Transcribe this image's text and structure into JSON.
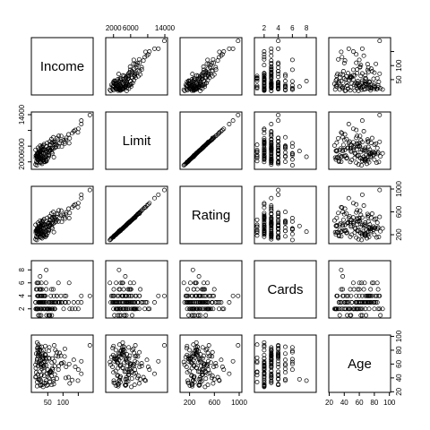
{
  "chart_data": {
    "type": "scatter",
    "kind": "scatterplot-matrix",
    "title": "",
    "variables": [
      {
        "name": "Income",
        "range": [
          5,
          190
        ],
        "ticks": [
          50,
          100,
          150
        ]
      },
      {
        "name": "Limit",
        "range": [
          800,
          14000
        ],
        "ticks": [
          2000,
          6000,
          10000,
          14000
        ]
      },
      {
        "name": "Rating",
        "range": [
          90,
          1000
        ],
        "ticks": [
          200,
          600,
          1000
        ]
      },
      {
        "name": "Cards",
        "range": [
          1,
          9
        ],
        "ticks": [
          2,
          4,
          6,
          8
        ]
      },
      {
        "name": "Age",
        "range": [
          23,
          98
        ],
        "ticks": [
          20,
          40,
          60,
          80,
          100
        ]
      }
    ],
    "tick_label_text": {
      "top": [
        [
          "2000",
          "6000",
          "14000"
        ],
        [
          "2",
          "4",
          "6",
          "8"
        ]
      ],
      "right": [
        [
          "50",
          "100"
        ],
        [
          "200",
          "600",
          "1000"
        ],
        [
          "20",
          "40",
          "60",
          "80",
          "100"
        ]
      ],
      "left": [
        [
          "2000",
          "6000",
          "14000"
        ],
        [
          "2",
          "4",
          "6",
          "8"
        ]
      ],
      "bottom": [
        [
          "50",
          "100"
        ],
        [
          "200",
          "600",
          "1000"
        ],
        [
          "20",
          "40",
          "60",
          "80",
          "100"
        ]
      ]
    },
    "records": [
      [
        15,
        3610,
        280,
        2,
        34
      ],
      [
        106,
        6650,
        480,
        3,
        82
      ],
      [
        105,
        7080,
        510,
        4,
        71
      ],
      [
        149,
        9500,
        681,
        3,
        36
      ],
      [
        55,
        4890,
        357,
        2,
        68
      ],
      [
        80,
        8050,
        569,
        4,
        77
      ],
      [
        21,
        3390,
        259,
        2,
        37
      ],
      [
        71,
        7110,
        512,
        2,
        87
      ],
      [
        15,
        3300,
        266,
        5,
        66
      ],
      [
        10,
        5060,
        372,
        3,
        41
      ],
      [
        63,
        6910,
        494,
        2,
        30
      ],
      [
        72,
        7030,
        500,
        3,
        64
      ],
      [
        18,
        3580,
        270,
        2,
        57
      ],
      [
        23,
        4590,
        340,
        1,
        49
      ],
      [
        49,
        3580,
        276,
        2,
        42
      ],
      [
        36,
        4300,
        320,
        3,
        80
      ],
      [
        32,
        4950,
        365,
        4,
        30
      ],
      [
        55,
        5530,
        410,
        3,
        84
      ],
      [
        94,
        8580,
        622,
        3,
        61
      ],
      [
        26,
        3640,
        270,
        2,
        59
      ],
      [
        18,
        4200,
        313,
        4,
        73
      ],
      [
        140,
        10100,
        730,
        2,
        56
      ],
      [
        36,
        2120,
        180,
        4,
        68
      ],
      [
        73,
        5570,
        415,
        2,
        45
      ],
      [
        22,
        2790,
        220,
        3,
        64
      ],
      [
        120,
        6740,
        490,
        6,
        60
      ],
      [
        34,
        3400,
        260,
        3,
        72
      ],
      [
        27,
        2050,
        171,
        5,
        36
      ],
      [
        29,
        3700,
        287,
        6,
        79
      ],
      [
        68,
        8260,
        598,
        5,
        38
      ],
      [
        42,
        1990,
        160,
        4,
        86
      ],
      [
        57,
        7170,
        523,
        2,
        47
      ],
      [
        37,
        4100,
        310,
        3,
        55
      ],
      [
        29,
        5500,
        400,
        3,
        44
      ],
      [
        15,
        4160,
        310,
        2,
        91
      ],
      [
        63,
        4500,
        338,
        1,
        62
      ],
      [
        24,
        4150,
        311,
        4,
        81
      ],
      [
        10,
        1350,
        120,
        3,
        59
      ],
      [
        89,
        6820,
        496,
        3,
        76
      ],
      [
        38,
        2050,
        175,
        3,
        33
      ],
      [
        66,
        7000,
        503,
        2,
        52
      ],
      [
        45,
        5900,
        430,
        5,
        58
      ],
      [
        31,
        1500,
        137,
        4,
        70
      ],
      [
        53,
        3740,
        284,
        1,
        69
      ],
      [
        109,
        7610,
        558,
        3,
        40
      ],
      [
        35,
        6160,
        450,
        2,
        27
      ],
      [
        12,
        3500,
        267,
        5,
        75
      ],
      [
        44,
        2620,
        211,
        6,
        67
      ],
      [
        122,
        8000,
        580,
        2,
        32
      ],
      [
        55,
        6350,
        461,
        1,
        48
      ],
      [
        96,
        5880,
        424,
        3,
        61
      ],
      [
        11,
        3040,
        237,
        2,
        54
      ],
      [
        160,
        11600,
        840,
        3,
        46
      ],
      [
        23,
        4390,
        325,
        5,
        85
      ],
      [
        80,
        6300,
        462,
        4,
        39
      ],
      [
        33,
        5180,
        382,
        3,
        67
      ],
      [
        26,
        2600,
        205,
        2,
        29
      ],
      [
        19,
        4040,
        301,
        4,
        75
      ],
      [
        65,
        5600,
        412,
        3,
        68
      ],
      [
        28,
        1760,
        150,
        3,
        56
      ],
      [
        38,
        2900,
        230,
        4,
        43
      ],
      [
        20,
        4200,
        309,
        6,
        77
      ],
      [
        46,
        2200,
        186,
        1,
        64
      ],
      [
        50,
        5300,
        398,
        2,
        52
      ],
      [
        31,
        6000,
        440,
        4,
        60
      ],
      [
        17,
        2560,
        200,
        2,
        80
      ],
      [
        77,
        5800,
        430,
        3,
        72
      ],
      [
        25,
        4760,
        352,
        7,
        38
      ],
      [
        59,
        6230,
        454,
        3,
        50
      ],
      [
        11,
        3600,
        269,
        2,
        42
      ],
      [
        70,
        3200,
        246,
        4,
        31
      ],
      [
        42,
        5120,
        378,
        3,
        74
      ],
      [
        188,
        13900,
        982,
        4,
        87
      ],
      [
        14,
        1150,
        107,
        6,
        63
      ],
      [
        150,
        10400,
        752,
        2,
        52
      ],
      [
        26,
        4900,
        361,
        3,
        66
      ],
      [
        47,
        4800,
        355,
        2,
        29
      ],
      [
        62,
        5400,
        400,
        5,
        48
      ],
      [
        19,
        2350,
        190,
        3,
        71
      ],
      [
        39,
        5010,
        370,
        2,
        64
      ],
      [
        86,
        8600,
        626,
        3,
        57
      ],
      [
        28,
        3000,
        235,
        1,
        44
      ],
      [
        16,
        1800,
        153,
        4,
        83
      ],
      [
        118,
        9000,
        655,
        3,
        41
      ],
      [
        51,
        3000,
        237,
        2,
        30
      ],
      [
        24,
        3800,
        286,
        3,
        79
      ],
      [
        73,
        6700,
        486,
        2,
        57
      ],
      [
        18,
        5600,
        408,
        4,
        45
      ],
      [
        33,
        2400,
        193,
        3,
        67
      ],
      [
        43,
        4500,
        333,
        2,
        73
      ],
      [
        57,
        5000,
        372,
        1,
        34
      ],
      [
        110,
        8100,
        590,
        4,
        56
      ],
      [
        21,
        2900,
        225,
        3,
        62
      ],
      [
        12,
        1990,
        163,
        2,
        48
      ],
      [
        84,
        7700,
        562,
        3,
        71
      ],
      [
        45,
        3300,
        253,
        8,
        36
      ],
      [
        37,
        2500,
        200,
        3,
        50
      ],
      [
        30,
        4400,
        327,
        2,
        85
      ],
      [
        65,
        4200,
        315,
        2,
        54
      ],
      [
        135,
        9800,
        710,
        3,
        66
      ],
      [
        20,
        5100,
        377,
        4,
        38
      ],
      [
        53,
        4600,
        342,
        3,
        79
      ],
      [
        25,
        6100,
        446,
        5,
        60
      ],
      [
        15,
        3100,
        243,
        2,
        28
      ],
      [
        41,
        3900,
        295,
        4,
        74
      ],
      [
        62,
        7800,
        570,
        3,
        43
      ],
      [
        30,
        3050,
        239,
        2,
        61
      ],
      [
        85,
        5900,
        430,
        6,
        52
      ],
      [
        34,
        2700,
        214,
        3,
        69
      ],
      [
        27,
        4700,
        348,
        4,
        30
      ],
      [
        48,
        6800,
        495,
        2,
        46
      ],
      [
        93,
        7300,
        532,
        4,
        72
      ],
      [
        19,
        3400,
        260,
        1,
        88
      ],
      [
        36,
        5200,
        384,
        3,
        57
      ],
      [
        54,
        3500,
        268,
        2,
        40
      ],
      [
        160,
        12500,
        900,
        4,
        64
      ],
      [
        22,
        3200,
        247,
        3,
        75
      ],
      [
        130,
        9300,
        675,
        2,
        37
      ],
      [
        31,
        5700,
        418,
        5,
        53
      ],
      [
        44,
        2300,
        187,
        3,
        33
      ],
      [
        75,
        6400,
        466,
        3,
        80
      ],
      [
        16,
        2800,
        220,
        2,
        68
      ],
      [
        60,
        4900,
        364,
        4,
        49
      ],
      [
        102,
        7500,
        545,
        2,
        62
      ],
      [
        25,
        1900,
        160,
        3,
        73
      ],
      [
        38,
        6500,
        473,
        2,
        58
      ],
      [
        69,
        5400,
        398,
        3,
        35
      ],
      [
        17,
        4000,
        301,
        6,
        84
      ]
    ]
  }
}
